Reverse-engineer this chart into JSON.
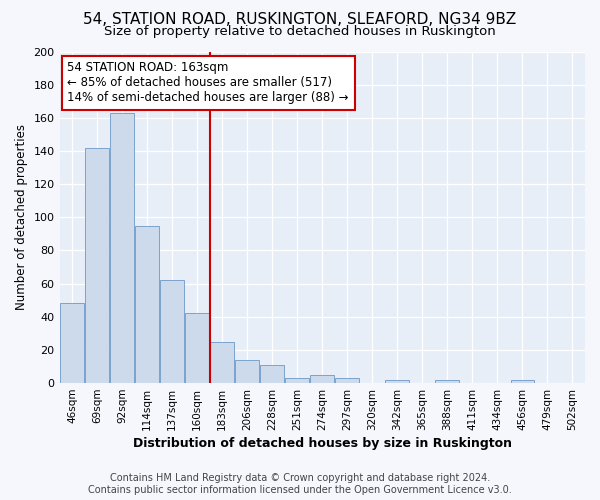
{
  "title": "54, STATION ROAD, RUSKINGTON, SLEAFORD, NG34 9BZ",
  "subtitle": "Size of property relative to detached houses in Ruskington",
  "xlabel": "Distribution of detached houses by size in Ruskington",
  "ylabel": "Number of detached properties",
  "bar_labels": [
    "46sqm",
    "69sqm",
    "92sqm",
    "114sqm",
    "137sqm",
    "160sqm",
    "183sqm",
    "206sqm",
    "228sqm",
    "251sqm",
    "274sqm",
    "297sqm",
    "320sqm",
    "342sqm",
    "365sqm",
    "388sqm",
    "411sqm",
    "434sqm",
    "456sqm",
    "479sqm",
    "502sqm"
  ],
  "bar_values": [
    48,
    142,
    163,
    95,
    62,
    42,
    25,
    14,
    11,
    3,
    5,
    3,
    0,
    2,
    0,
    2,
    0,
    0,
    2,
    0,
    0
  ],
  "bar_color": "#cddaeb",
  "bar_edge_color": "#7aa3cc",
  "vline_x": 5.5,
  "vline_color": "#cc0000",
  "annotation_line1": "54 STATION ROAD: 163sqm",
  "annotation_line2": "← 85% of detached houses are smaller (517)",
  "annotation_line3": "14% of semi-detached houses are larger (88) →",
  "annotation_box_color": "#ffffff",
  "annotation_box_edge_color": "#cc0000",
  "footer_line1": "Contains HM Land Registry data © Crown copyright and database right 2024.",
  "footer_line2": "Contains public sector information licensed under the Open Government Licence v3.0.",
  "ylim": [
    0,
    200
  ],
  "fig_bg_color": "#f5f7fc",
  "plot_bg_color": "#e8eef8",
  "title_fontsize": 11,
  "subtitle_fontsize": 9.5,
  "ylabel_fontsize": 8.5,
  "xlabel_fontsize": 9,
  "annotation_fontsize": 8.5,
  "footer_fontsize": 7
}
